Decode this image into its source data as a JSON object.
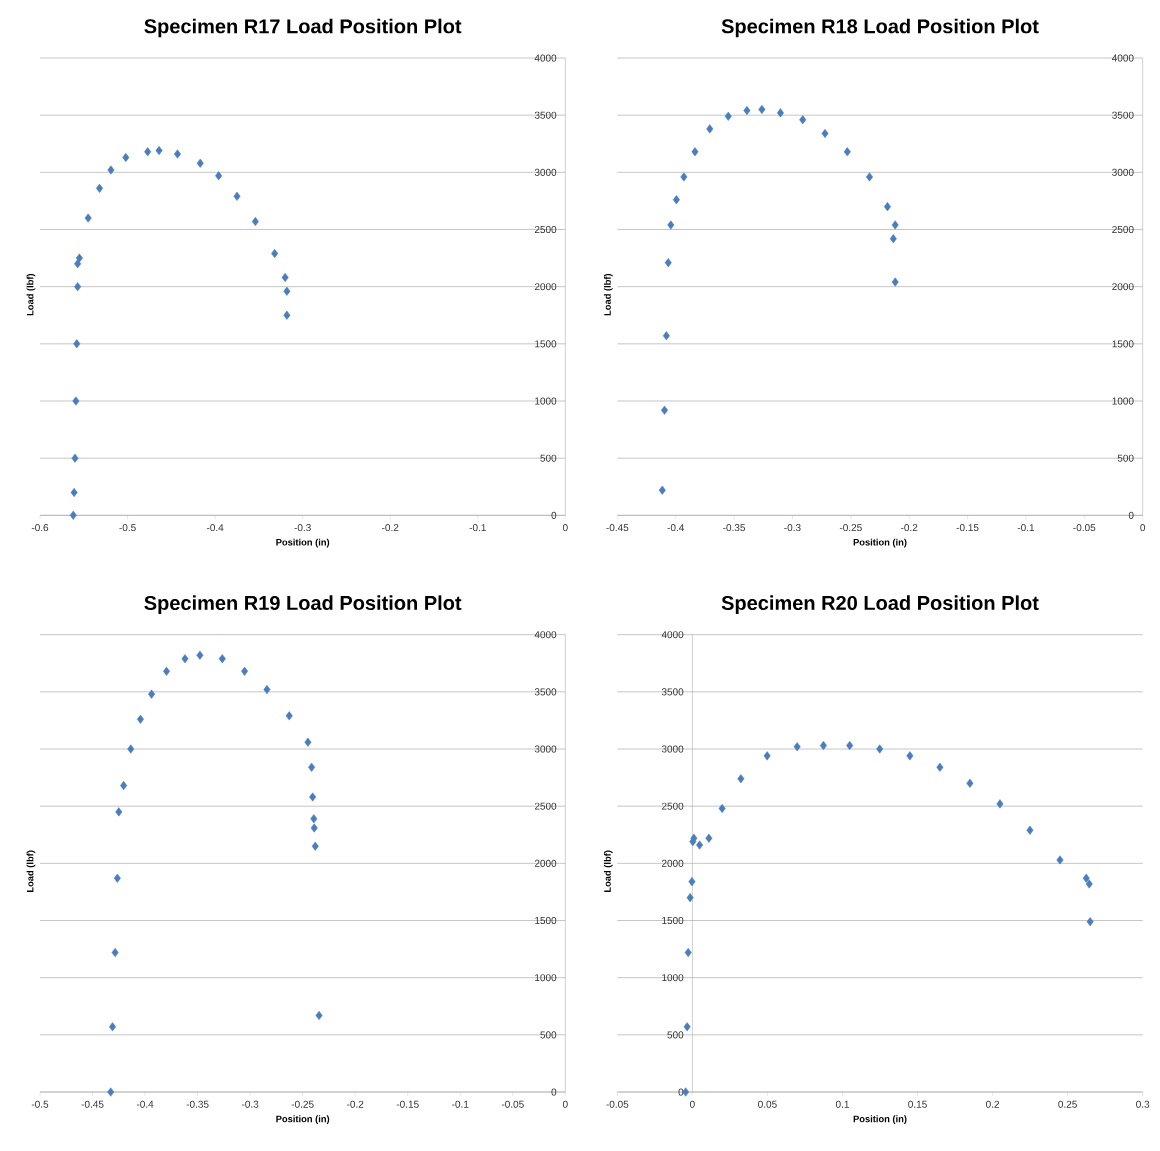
{
  "chart_data": [
    {
      "type": "scatter",
      "title": "Specimen R17 Load Position Plot",
      "xlabel": "Position (in)",
      "ylabel": "Load (lbf)",
      "color": "#4a7ebb",
      "marker": "diamond",
      "grid": "y",
      "xlim": [
        -0.6,
        0
      ],
      "xticks": [
        -0.6,
        -0.5,
        -0.4,
        -0.3,
        -0.2,
        -0.1,
        0
      ],
      "ylim": [
        0,
        4000
      ],
      "yticks": [
        0,
        500,
        1000,
        1500,
        2000,
        2500,
        3000,
        3500,
        4000
      ],
      "x": [
        -0.562,
        -0.561,
        -0.56,
        -0.559,
        -0.558,
        -0.557,
        -0.557,
        -0.555,
        -0.545,
        -0.532,
        -0.519,
        -0.502,
        -0.477,
        -0.464,
        -0.443,
        -0.417,
        -0.396,
        -0.375,
        -0.354,
        -0.332,
        -0.32,
        -0.318,
        -0.318
      ],
      "values": [
        0,
        200,
        500,
        1000,
        1500,
        2000,
        2200,
        2250,
        2600,
        2860,
        3020,
        3130,
        3180,
        3190,
        3160,
        3080,
        2970,
        2790,
        2570,
        2290,
        2080,
        1960,
        1750
      ]
    },
    {
      "type": "scatter",
      "title": "Specimen R18 Load Position Plot",
      "xlabel": "Position (in)",
      "ylabel": "Load (lbf)",
      "color": "#4a7ebb",
      "marker": "diamond",
      "grid": "y",
      "xlim": [
        -0.45,
        0
      ],
      "xticks": [
        -0.45,
        -0.4,
        -0.35,
        -0.3,
        -0.25,
        -0.2,
        -0.15,
        -0.1,
        -0.05,
        0
      ],
      "ylim": [
        0,
        4000
      ],
      "yticks": [
        0,
        500,
        1000,
        1500,
        2000,
        2500,
        3000,
        3500,
        4000
      ],
      "x": [
        -0.4115,
        -0.4096,
        -0.408,
        -0.4064,
        -0.4042,
        -0.3994,
        -0.393,
        -0.3835,
        -0.3708,
        -0.355,
        -0.339,
        -0.3262,
        -0.3103,
        -0.2912,
        -0.2721,
        -0.253,
        -0.234,
        -0.2186,
        -0.212,
        -0.2136,
        -0.212
      ],
      "values": [
        220,
        920,
        1570,
        2210,
        2540,
        2760,
        2960,
        3180,
        3380,
        3490,
        3540,
        3550,
        3520,
        3460,
        3340,
        3180,
        2960,
        2700,
        2540,
        2420,
        2040
      ]
    },
    {
      "type": "scatter",
      "title": "Specimen R19 Load Position Plot",
      "xlabel": "Position (in)",
      "ylabel": "Load (lbf)",
      "color": "#4a7ebb",
      "marker": "diamond",
      "grid": "y",
      "xlim": [
        -0.5,
        0
      ],
      "xticks": [
        -0.5,
        -0.45,
        -0.4,
        -0.35,
        -0.3,
        -0.25,
        -0.2,
        -0.15,
        -0.1,
        -0.05,
        0
      ],
      "ylim": [
        0,
        4000
      ],
      "yticks": [
        0,
        500,
        1000,
        1500,
        2000,
        2500,
        3000,
        3500,
        4000
      ],
      "x": [
        -0.4327,
        -0.431,
        -0.4285,
        -0.4264,
        -0.425,
        -0.4204,
        -0.4136,
        -0.4044,
        -0.3938,
        -0.3796,
        -0.362,
        -0.3478,
        -0.3265,
        -0.3053,
        -0.284,
        -0.2628,
        -0.245,
        -0.2415,
        -0.2405,
        -0.2394,
        -0.239,
        -0.238,
        -0.2344
      ],
      "values": [
        0,
        570,
        1220,
        1870,
        2450,
        2680,
        3000,
        3260,
        3480,
        3680,
        3790,
        3820,
        3790,
        3680,
        3520,
        3290,
        3060,
        2840,
        2580,
        2390,
        2310,
        2150,
        670
      ]
    },
    {
      "type": "scatter",
      "title": "Specimen R20 Load Position Plot",
      "xlabel": "Position (in)",
      "ylabel": "Load (lbf)",
      "color": "#4a7ebb",
      "marker": "diamond",
      "grid": "y",
      "xlim": [
        -0.05,
        0.3
      ],
      "xticks": [
        -0.05,
        0,
        0.05,
        0.1,
        0.15,
        0.2,
        0.25,
        0.3
      ],
      "ylim": [
        0,
        4000
      ],
      "yticks": [
        0,
        500,
        1000,
        1500,
        2000,
        2500,
        3000,
        3500,
        4000
      ],
      "x": [
        -0.0045,
        -0.0035,
        -0.0028,
        -0.0015,
        -0.0003,
        0.0003,
        0.001,
        0.0048,
        0.011,
        0.0198,
        0.0323,
        0.0498,
        0.0698,
        0.0873,
        0.1048,
        0.1248,
        0.1449,
        0.1649,
        0.1849,
        0.2049,
        0.2249,
        0.2449,
        0.2624,
        0.2644,
        0.265
      ],
      "values": [
        0,
        570,
        1220,
        1700,
        1840,
        2190,
        2220,
        2160,
        2220,
        2480,
        2740,
        2940,
        3020,
        3030,
        3030,
        3000,
        2940,
        2840,
        2700,
        2520,
        2290,
        2030,
        1870,
        1820,
        1490
      ]
    }
  ]
}
